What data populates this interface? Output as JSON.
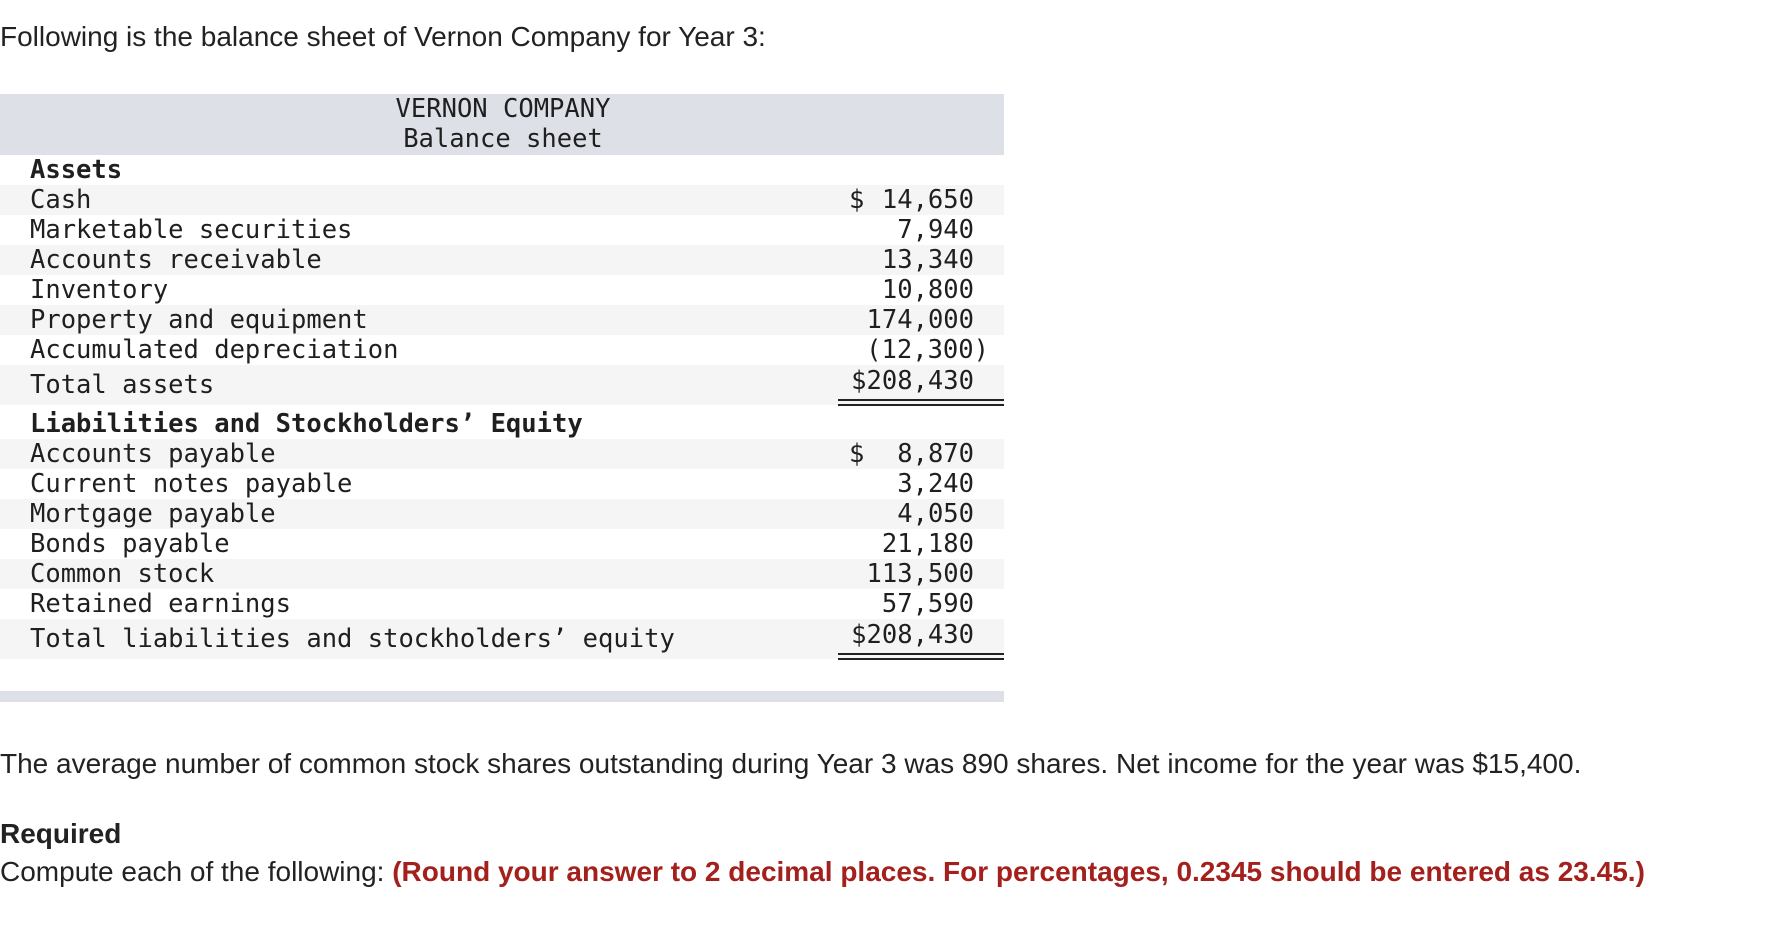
{
  "intro_text": "Following is the balance sheet of Vernon Company for Year 3:",
  "balance_sheet": {
    "company": "VERNON COMPANY",
    "title": "Balance sheet",
    "assets_heading": "Assets",
    "assets": [
      {
        "label": "Cash",
        "dollar": "$",
        "amount": "14,650"
      },
      {
        "label": "Marketable securities",
        "dollar": "",
        "amount": "7,940"
      },
      {
        "label": "Accounts receivable",
        "dollar": "",
        "amount": "13,340"
      },
      {
        "label": "Inventory",
        "dollar": "",
        "amount": "10,800"
      },
      {
        "label": "Property and equipment",
        "dollar": "",
        "amount": "174,000"
      },
      {
        "label": "Accumulated depreciation",
        "dollar": "",
        "amount": "(12,300)"
      }
    ],
    "total_assets": {
      "label": "Total assets",
      "amount": "$208,430"
    },
    "liabilities_heading": "Liabilities and Stockholders’ Equity",
    "liabilities": [
      {
        "label": "Accounts payable",
        "dollar": "$",
        "amount": "8,870"
      },
      {
        "label": "Current notes payable",
        "dollar": "",
        "amount": "3,240"
      },
      {
        "label": "Mortgage payable",
        "dollar": "",
        "amount": "4,050"
      },
      {
        "label": "Bonds payable",
        "dollar": "",
        "amount": "21,180"
      },
      {
        "label": "Common stock",
        "dollar": "",
        "amount": "113,500"
      },
      {
        "label": "Retained earnings",
        "dollar": "",
        "amount": "57,590"
      }
    ],
    "total_liabilities": {
      "label": "Total liabilities and stockholders’ equity",
      "amount": "$208,430"
    }
  },
  "info_text": "The average number of common stock shares outstanding during Year 3 was 890 shares. Net income for the year was $15,400.",
  "required": {
    "title": "Required",
    "instruction": "Compute each of the following: ",
    "note": "(Round your answer to 2 decimal places. For percentages, 0.2345 should be entered as 23.45.)"
  },
  "colors": {
    "header_band": "#dde0e6",
    "row_shade": "#f5f5f5",
    "note_red": "#a3201c"
  }
}
